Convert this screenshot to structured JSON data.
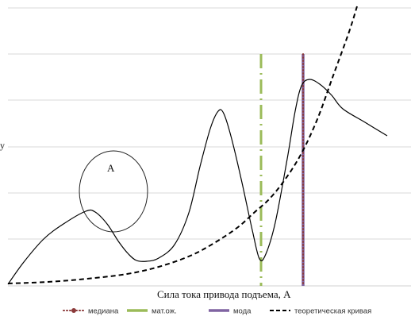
{
  "chart_data": {
    "type": "line",
    "title": "",
    "xlabel": "Сила тока привода подъема, А",
    "ylabel": "у",
    "grid": true,
    "legend_position": "bottom",
    "annotation": "А",
    "vertical_lines": [
      {
        "name": "медиана",
        "x": 382,
        "color": "#8b3a3a",
        "style": "dotted"
      },
      {
        "name": "мат.ож.",
        "x": 329,
        "color": "#9bbb59",
        "style": "dashdot"
      },
      {
        "name": "мода",
        "x": 382,
        "color": "#8064a2",
        "style": "solid"
      }
    ],
    "series": [
      {
        "name": "",
        "color": "#000000",
        "style": "solid",
        "points": [
          [
            10,
            358
          ],
          [
            30,
            330
          ],
          [
            55,
            301
          ],
          [
            80,
            282
          ],
          [
            108,
            266
          ],
          [
            120,
            267
          ],
          [
            135,
            282
          ],
          [
            150,
            305
          ],
          [
            162,
            320
          ],
          [
            172,
            328
          ],
          [
            185,
            329
          ],
          [
            200,
            325
          ],
          [
            220,
            308
          ],
          [
            238,
            268
          ],
          [
            252,
            210
          ],
          [
            265,
            162
          ],
          [
            275,
            140
          ],
          [
            282,
            143
          ],
          [
            292,
            175
          ],
          [
            305,
            230
          ],
          [
            318,
            290
          ],
          [
            327,
            326
          ],
          [
            335,
            320
          ],
          [
            347,
            280
          ],
          [
            362,
            200
          ],
          [
            372,
            140
          ],
          [
            380,
            108
          ],
          [
            390,
            100
          ],
          [
            403,
            106
          ],
          [
            418,
            120
          ],
          [
            432,
            137
          ],
          [
            460,
            154
          ],
          [
            488,
            171
          ]
        ]
      },
      {
        "name": "теоретическая кривая",
        "color": "#000000",
        "style": "dashed",
        "points": [
          [
            10,
            357
          ],
          [
            60,
            355
          ],
          [
            110,
            351
          ],
          [
            160,
            345
          ],
          [
            200,
            336
          ],
          [
            240,
            322
          ],
          [
            270,
            306
          ],
          [
            300,
            286
          ],
          [
            320,
            268
          ],
          [
            340,
            250
          ],
          [
            360,
            225
          ],
          [
            380,
            193
          ],
          [
            400,
            150
          ],
          [
            420,
            95
          ],
          [
            440,
            40
          ],
          [
            450,
            8
          ]
        ]
      }
    ]
  },
  "legend": [
    {
      "label": "медиана",
      "color": "#8b3a3a",
      "style": "dotted-marker"
    },
    {
      "label": "мат.ож.",
      "color": "#9bbb59",
      "style": "solid-thick"
    },
    {
      "label": "мода",
      "color": "#8064a2",
      "style": "solid-thick"
    },
    {
      "label": "теоретическая кривая",
      "color": "#000000",
      "style": "dashed"
    }
  ]
}
